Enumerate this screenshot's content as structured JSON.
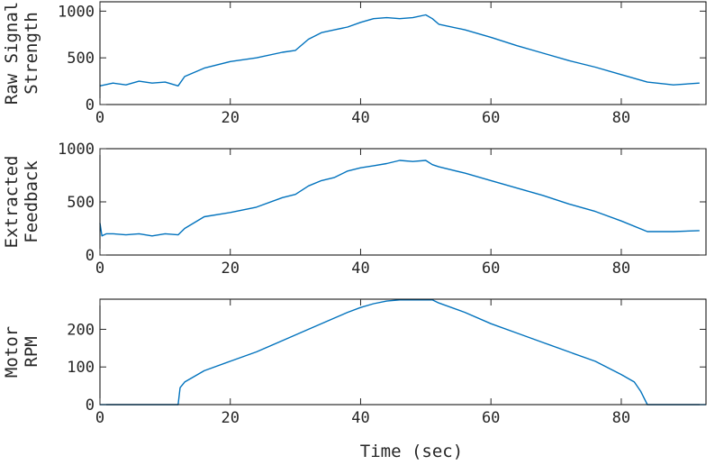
{
  "chart_data": [
    {
      "type": "line",
      "ylabel": [
        "Raw Signal",
        "Strength"
      ],
      "xlim": [
        0,
        93
      ],
      "ylim": [
        0,
        1100
      ],
      "xticks": [
        0,
        20,
        40,
        60,
        80
      ],
      "yticks": [
        0,
        500,
        1000
      ],
      "grid": false,
      "color": "#0072BD",
      "series": [
        {
          "x": [
            0,
            2,
            4,
            6,
            8,
            10,
            12,
            13,
            16,
            20,
            24,
            28,
            30,
            32,
            34,
            36,
            38,
            40,
            42,
            44,
            46,
            48,
            50,
            51,
            52,
            56,
            60,
            64,
            68,
            72,
            76,
            80,
            84,
            88,
            92
          ],
          "y": [
            200,
            230,
            210,
            250,
            230,
            240,
            200,
            300,
            390,
            460,
            500,
            560,
            580,
            700,
            770,
            800,
            830,
            880,
            920,
            930,
            920,
            930,
            960,
            920,
            860,
            800,
            720,
            630,
            550,
            470,
            400,
            320,
            240,
            210,
            230
          ]
        }
      ]
    },
    {
      "type": "line",
      "ylabel": [
        "Extracted",
        "Feedback"
      ],
      "xlim": [
        0,
        93
      ],
      "ylim": [
        0,
        1000
      ],
      "xticks": [
        0,
        20,
        40,
        60,
        80
      ],
      "yticks": [
        0,
        500,
        1000
      ],
      "grid": false,
      "color": "#0072BD",
      "series": [
        {
          "x": [
            0,
            0.3,
            1,
            2,
            4,
            6,
            8,
            10,
            12,
            13,
            16,
            20,
            24,
            28,
            30,
            32,
            34,
            36,
            38,
            40,
            42,
            44,
            46,
            48,
            50,
            51,
            52,
            56,
            60,
            64,
            68,
            72,
            76,
            80,
            84,
            88,
            92
          ],
          "y": [
            300,
            180,
            200,
            200,
            190,
            200,
            180,
            200,
            190,
            250,
            360,
            400,
            450,
            540,
            570,
            650,
            700,
            730,
            790,
            820,
            840,
            860,
            890,
            880,
            890,
            850,
            830,
            770,
            700,
            630,
            560,
            480,
            410,
            320,
            220,
            220,
            230
          ]
        }
      ]
    },
    {
      "type": "line",
      "ylabel": [
        "Motor",
        "RPM"
      ],
      "xlabel": "Time (sec)",
      "xlim": [
        0,
        93
      ],
      "ylim": [
        0,
        280
      ],
      "xticks": [
        0,
        20,
        40,
        60,
        80
      ],
      "yticks": [
        0,
        100,
        200
      ],
      "grid": false,
      "color": "#0072BD",
      "series": [
        {
          "x": [
            0,
            12,
            12.3,
            13,
            16,
            20,
            24,
            28,
            32,
            36,
            38,
            40,
            42,
            44,
            46,
            48,
            50,
            51,
            52,
            56,
            60,
            64,
            68,
            72,
            76,
            80,
            82,
            83,
            84,
            93
          ],
          "y": [
            0,
            0,
            45,
            60,
            90,
            115,
            140,
            170,
            200,
            230,
            245,
            258,
            268,
            275,
            278,
            278,
            278,
            278,
            270,
            245,
            215,
            190,
            165,
            140,
            115,
            80,
            60,
            35,
            0,
            0
          ]
        }
      ]
    }
  ]
}
